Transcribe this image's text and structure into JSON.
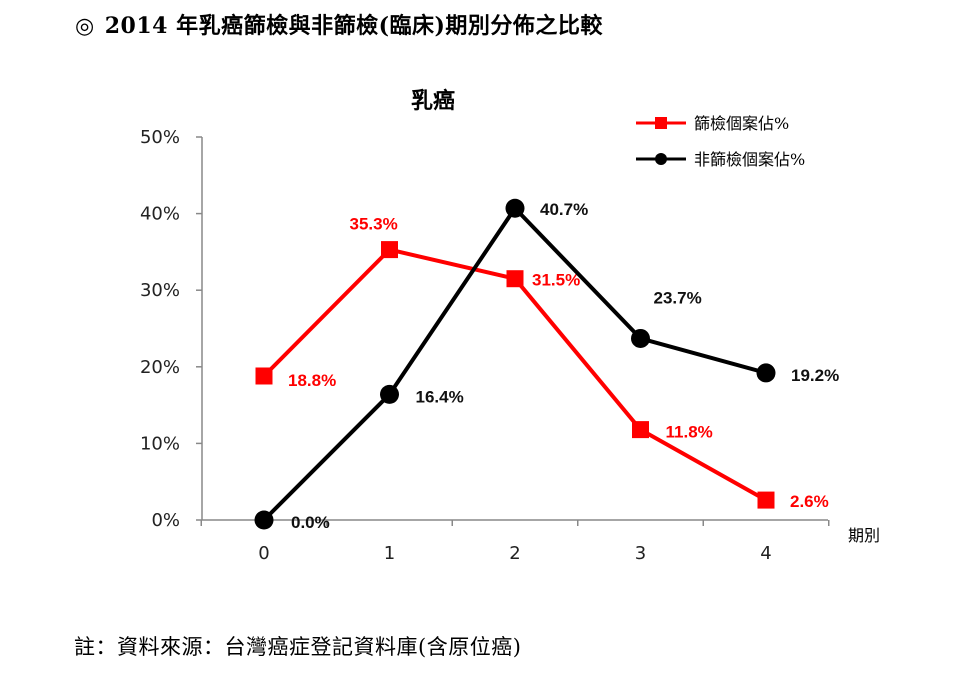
{
  "heading": {
    "mark": "◎",
    "text": "2014 年乳癌篩檢與非篩檢(臨床)期別分佈之比較"
  },
  "note": "註：資料來源：台灣癌症登記資料庫(含原位癌)",
  "chart_data": {
    "type": "line",
    "title": "乳癌",
    "x_name": "期別",
    "categories": [
      "0",
      "1",
      "2",
      "3",
      "4"
    ],
    "yticks": [
      "0%",
      "10%",
      "20%",
      "30%",
      "40%",
      "50%"
    ],
    "ylim": [
      0,
      50
    ],
    "grid": false,
    "legend_position": "top-right",
    "series": [
      {
        "name": "篩檢個案佔%",
        "color": "#ff0000",
        "marker": "square",
        "values": [
          18.8,
          35.3,
          31.5,
          11.8,
          2.6
        ],
        "labels": [
          "18.8%",
          "35.3%",
          "31.5%",
          "11.8%",
          "2.6%"
        ]
      },
      {
        "name": "非篩檢個案佔%",
        "color": "#000000",
        "marker": "circle",
        "values": [
          0.0,
          16.4,
          40.7,
          23.7,
          19.2
        ],
        "labels": [
          "0.0%",
          "16.4%",
          "40.7%",
          "23.7%",
          "19.2%"
        ]
      }
    ]
  }
}
